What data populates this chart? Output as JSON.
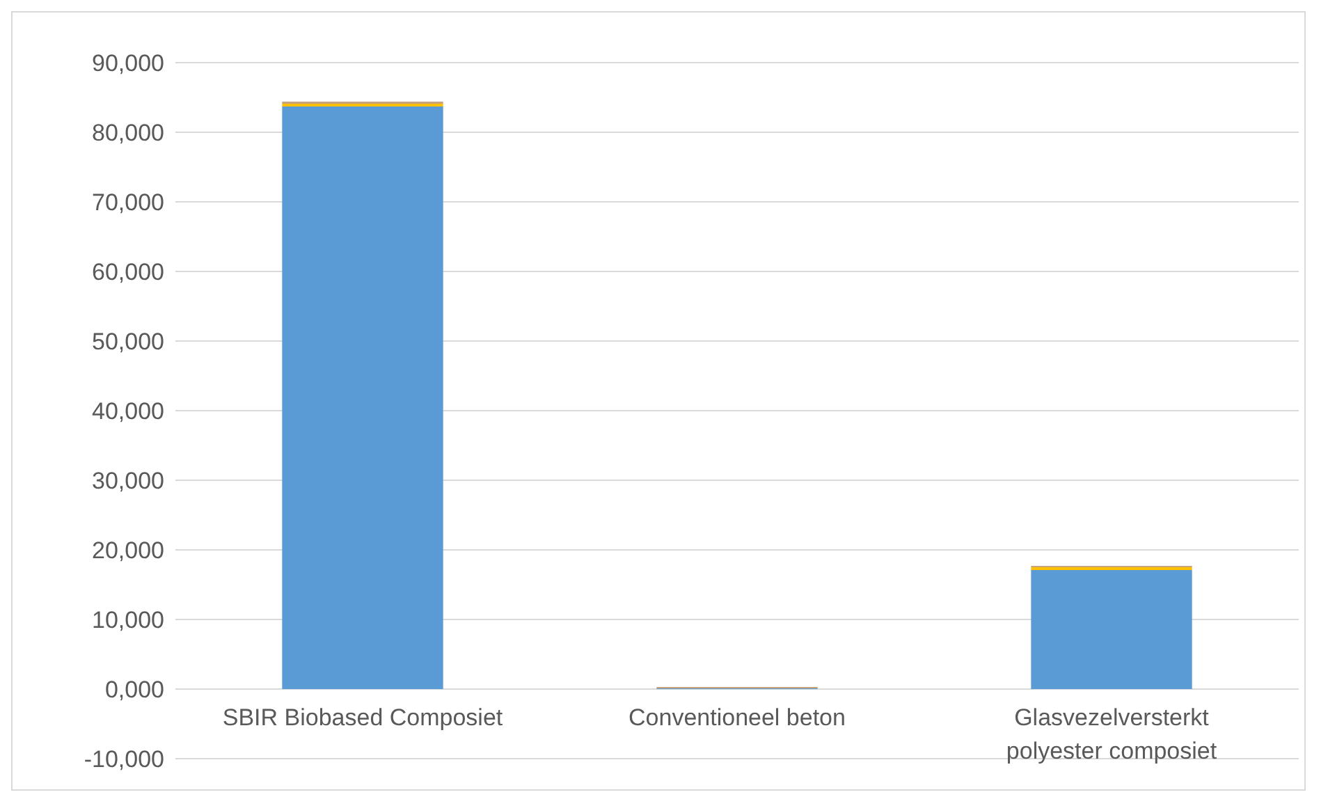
{
  "chart_data": {
    "type": "bar",
    "stacked": true,
    "categories": [
      "SBIR Biobased Composiet",
      "Conventioneel beton",
      "Glasvezelversterkt polyester composiet"
    ],
    "series": [
      {
        "color": "#5b9bd5",
        "values": [
          83700,
          100,
          17100
        ]
      },
      {
        "color": "#ffc000",
        "values": [
          400,
          0,
          400
        ]
      },
      {
        "color": "#c8a27c",
        "values": [
          300,
          200,
          200
        ]
      }
    ],
    "ylim": [
      -10000,
      90000
    ],
    "yticks": [
      {
        "value": -10000,
        "label": "-10,000"
      },
      {
        "value": 0,
        "label": "0,000"
      },
      {
        "value": 10000,
        "label": "10,000"
      },
      {
        "value": 20000,
        "label": "20,000"
      },
      {
        "value": 30000,
        "label": "30,000"
      },
      {
        "value": 40000,
        "label": "40,000"
      },
      {
        "value": 50000,
        "label": "50,000"
      },
      {
        "value": 60000,
        "label": "60,000"
      },
      {
        "value": 70000,
        "label": "70,000"
      },
      {
        "value": 80000,
        "label": "80,000"
      },
      {
        "value": 90000,
        "label": "90,000"
      }
    ],
    "grid": "y"
  }
}
